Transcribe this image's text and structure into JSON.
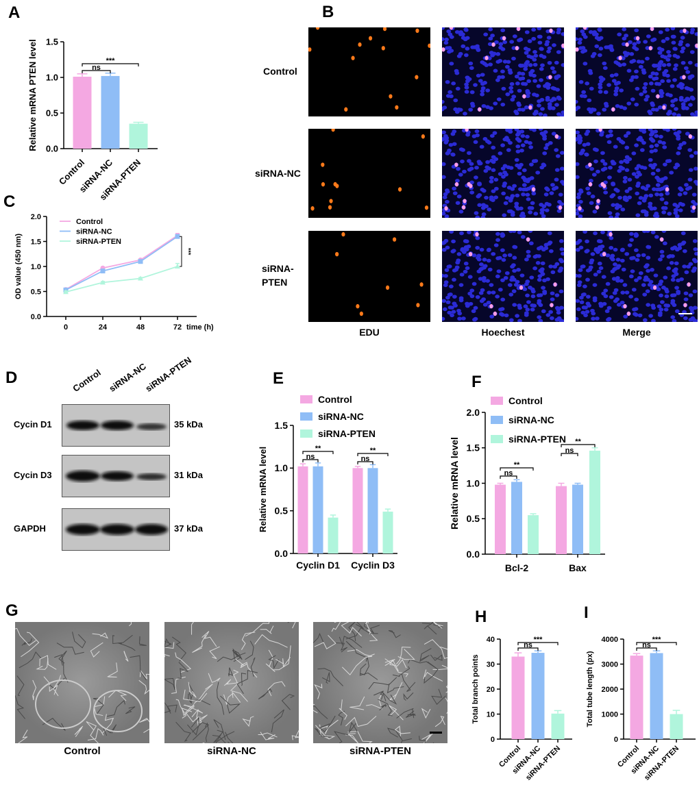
{
  "colors": {
    "control": "#f4a8e2",
    "nc": "#8fbdf6",
    "pten": "#b0f5dc"
  },
  "panels": {
    "B": {
      "label": "B",
      "rows": [
        "Control",
        "siRNA-NC",
        "siRNA-PTEN"
      ],
      "columns": [
        "EDU",
        "Hoechest",
        "Merge"
      ]
    },
    "D": {
      "label": "D",
      "lanes": [
        "Control",
        "siRNA-NC",
        "siRNA-PTEN"
      ],
      "bands": [
        {
          "name": "Cycin D1",
          "size": "35 kDa"
        },
        {
          "name": "Cycin D3",
          "size": "31 kDa"
        },
        {
          "name": "GAPDH",
          "size": "37 kDa"
        }
      ]
    },
    "G": {
      "label": "G",
      "images": [
        "Control",
        "siRNA-NC",
        "siRNA-PTEN"
      ]
    }
  },
  "chart_data": [
    {
      "panel_label": "A",
      "type": "bar",
      "categories": [
        "Control",
        "siRNA-NC",
        "siRNA-PTEN"
      ],
      "values": [
        1.01,
        1.02,
        0.35
      ],
      "errors": [
        0.04,
        0.04,
        0.02
      ],
      "ylabel": "Relative mRNA PTEN level",
      "xlabel": "",
      "ylim": [
        0,
        1.5
      ],
      "yticks": [
        "0.0",
        "0.5",
        "1.0",
        "1.5"
      ],
      "significance": [
        {
          "from": 0,
          "to": 1,
          "label": "ns"
        },
        {
          "from": 0,
          "to": 2,
          "label": "***"
        }
      ]
    },
    {
      "panel_label": "C",
      "type": "line",
      "x": [
        0,
        24,
        48,
        72
      ],
      "xticks": [
        "0",
        "24",
        "48",
        "72"
      ],
      "xlabel": "time (h)",
      "ylabel": "OD value (450 nm)",
      "ylim": [
        0,
        2.0
      ],
      "yticks": [
        "0.0",
        "0.5",
        "1.0",
        "1.5",
        "2.0"
      ],
      "legend": "top-left",
      "series": [
        {
          "name": "Control",
          "values": [
            0.54,
            0.97,
            1.13,
            1.62
          ],
          "errors": [
            0.02,
            0.02,
            0.02,
            0.04
          ]
        },
        {
          "name": "siRNA-NC",
          "values": [
            0.53,
            0.91,
            1.1,
            1.6
          ],
          "errors": [
            0.02,
            0.02,
            0.02,
            0.03
          ]
        },
        {
          "name": "siRNA-PTEN",
          "values": [
            0.49,
            0.68,
            0.76,
            1.0
          ],
          "errors": [
            0.02,
            0.02,
            0.02,
            0.06
          ]
        }
      ],
      "significance": [
        {
          "label": "***"
        }
      ]
    },
    {
      "panel_label": "E",
      "type": "bar",
      "categories": [
        "Cyclin D1",
        "Cyclin D3"
      ],
      "ylabel": "Relative mRNA level",
      "xlabel": "",
      "ylim": [
        0,
        1.5
      ],
      "yticks": [
        "0.0",
        "0.5",
        "1.0",
        "1.5"
      ],
      "legend": "top",
      "series": [
        {
          "name": "Control",
          "values": [
            1.02,
            1.0
          ],
          "errors": [
            0.03,
            0.02
          ]
        },
        {
          "name": "siRNA-NC",
          "values": [
            1.02,
            1.0
          ],
          "errors": [
            0.04,
            0.04
          ]
        },
        {
          "name": "siRNA-PTEN",
          "values": [
            0.42,
            0.49
          ],
          "errors": [
            0.03,
            0.03
          ]
        }
      ],
      "significance": [
        {
          "group": 0,
          "from": 0,
          "to": 1,
          "label": "ns"
        },
        {
          "group": 0,
          "from": 0,
          "to": 2,
          "label": "**"
        },
        {
          "group": 1,
          "from": 0,
          "to": 1,
          "label": "ns"
        },
        {
          "group": 1,
          "from": 0,
          "to": 2,
          "label": "**"
        }
      ]
    },
    {
      "panel_label": "F",
      "type": "bar",
      "categories": [
        "Bcl-2",
        "Bax"
      ],
      "ylabel": "Relative mRNA level",
      "xlabel": "",
      "ylim": [
        0,
        2.0
      ],
      "yticks": [
        "0.0",
        "0.5",
        "1.0",
        "1.5",
        "2.0"
      ],
      "legend": "top-left",
      "series": [
        {
          "name": "Control",
          "values": [
            0.98,
            0.96
          ],
          "errors": [
            0.02,
            0.04
          ]
        },
        {
          "name": "siRNA-NC",
          "values": [
            1.02,
            0.98
          ],
          "errors": [
            0.03,
            0.02
          ]
        },
        {
          "name": "siRNA-PTEN",
          "values": [
            0.55,
            1.46
          ],
          "errors": [
            0.02,
            0.04
          ]
        }
      ],
      "significance": [
        {
          "group": 0,
          "from": 0,
          "to": 1,
          "label": "ns"
        },
        {
          "group": 0,
          "from": 0,
          "to": 2,
          "label": "**"
        },
        {
          "group": 1,
          "from": 0,
          "to": 1,
          "label": "ns"
        },
        {
          "group": 1,
          "from": 0,
          "to": 2,
          "label": "**"
        }
      ]
    },
    {
      "panel_label": "H",
      "type": "bar",
      "categories": [
        "Control",
        "siRNA-NC",
        "siRNA-PTEN"
      ],
      "values": [
        33,
        34.5,
        10.2
      ],
      "errors": [
        1.5,
        0.8,
        1.2
      ],
      "ylabel": "Total branch points",
      "xlabel": "",
      "ylim": [
        0,
        40
      ],
      "yticks": [
        "0",
        "10",
        "20",
        "30",
        "40"
      ],
      "significance": [
        {
          "from": 0,
          "to": 1,
          "label": "ns"
        },
        {
          "from": 0,
          "to": 2,
          "label": "***"
        }
      ]
    },
    {
      "panel_label": "I",
      "type": "bar",
      "categories": [
        "Control",
        "siRNA-NC",
        "siRNA-PTEN"
      ],
      "values": [
        3340,
        3440,
        1000
      ],
      "errors": [
        80,
        90,
        150
      ],
      "ylabel": "Total tube length (px)",
      "xlabel": "",
      "ylim": [
        0,
        4000
      ],
      "yticks": [
        "0",
        "1000",
        "2000",
        "3000",
        "4000"
      ],
      "significance": [
        {
          "from": 0,
          "to": 1,
          "label": "ns"
        },
        {
          "from": 0,
          "to": 2,
          "label": "***"
        }
      ]
    }
  ]
}
